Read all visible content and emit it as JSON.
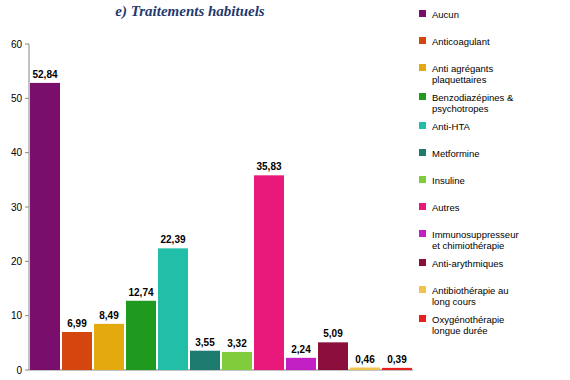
{
  "chart_data": {
    "type": "bar",
    "title": "e) Traitements habituels",
    "categories": [
      "Aucun",
      "Anticoagulant",
      "Anti agrégants plaquettaires",
      "Benzodiazépines & psychotropes",
      "Anti-HTA",
      "Metformine",
      "Insuline",
      "Autres",
      "Immunosuppresseur et chimiothérapie",
      "Anti-arythmiques",
      "Antibiothérapie au long cours",
      "Oxygénothérapie longue durée"
    ],
    "values": [
      52.84,
      6.99,
      8.49,
      12.74,
      22.39,
      3.55,
      3.32,
      35.83,
      2.24,
      5.09,
      0.46,
      0.39
    ],
    "value_labels": [
      "52,84",
      "6,99",
      "8,49",
      "12,74",
      "22,39",
      "3,55",
      "3,32",
      "35,83",
      "2,24",
      "5,09",
      "0,46",
      "0,39"
    ],
    "colors": [
      "#7a0e6c",
      "#d5460f",
      "#e4a90f",
      "#1f9a1f",
      "#22bfa8",
      "#1d7b6f",
      "#80cc3a",
      "#e8197b",
      "#c21fc4",
      "#8b0f3c",
      "#f1c24e",
      "#e8211f"
    ],
    "ylim": [
      0,
      60
    ],
    "yticks": [
      0,
      10,
      20,
      30,
      40,
      50,
      60
    ],
    "grid": false,
    "legend": "right",
    "data_labels": true,
    "tick_labels": "y"
  }
}
